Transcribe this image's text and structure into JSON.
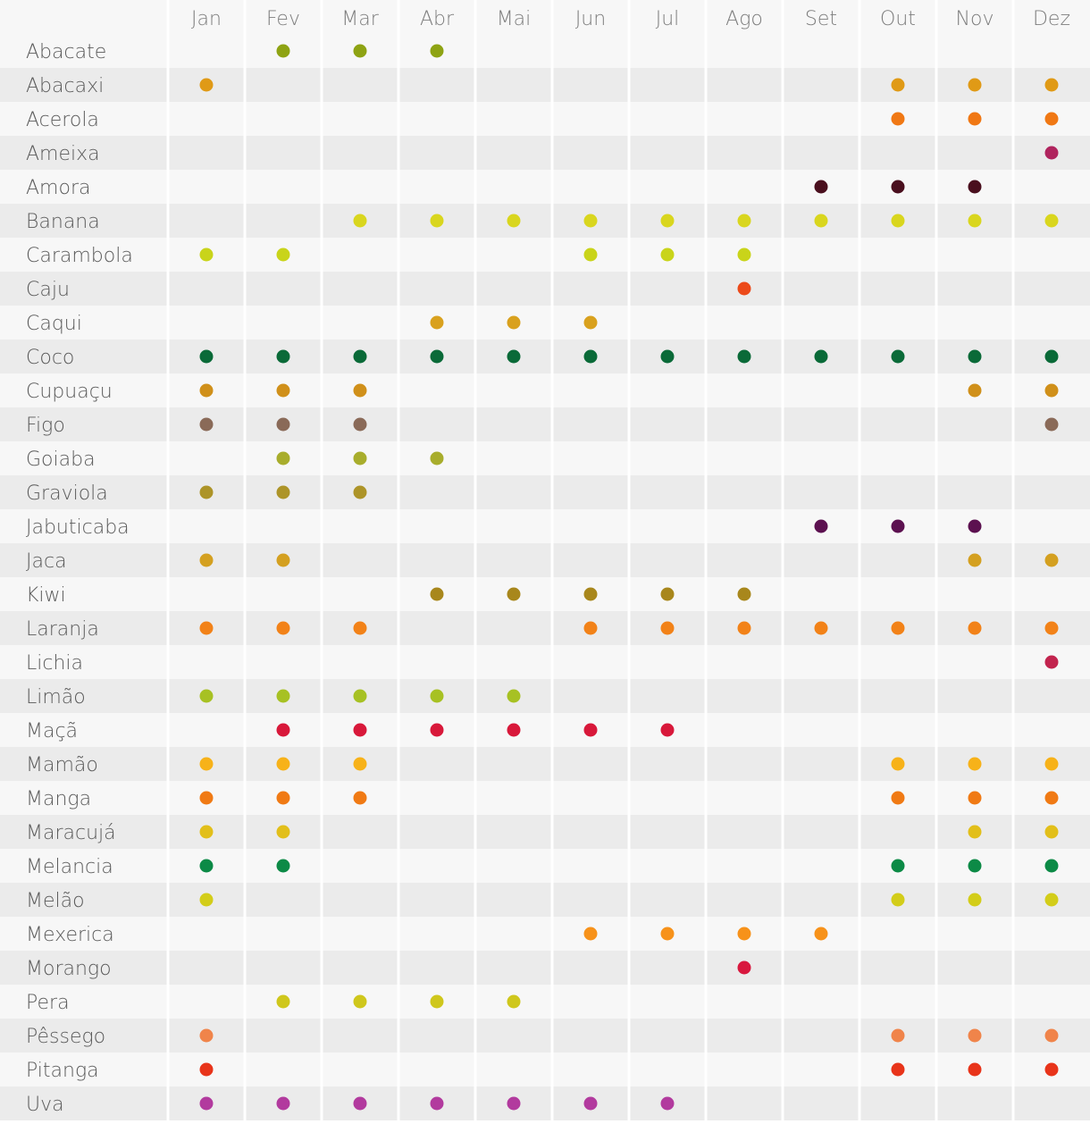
{
  "chart_data": {
    "type": "table",
    "title": "",
    "months": [
      "Jan",
      "Fev",
      "Mar",
      "Abr",
      "Mai",
      "Jun",
      "Jul",
      "Ago",
      "Set",
      "Out",
      "Nov",
      "Dez"
    ],
    "fruits": [
      {
        "name": "Abacate",
        "color": "#8ea313",
        "months": [
          2,
          3,
          4
        ]
      },
      {
        "name": "Abacaxi",
        "color": "#e09a16",
        "months": [
          1,
          10,
          11,
          12
        ]
      },
      {
        "name": "Acerola",
        "color": "#f07814",
        "months": [
          10,
          11,
          12
        ]
      },
      {
        "name": "Ameixa",
        "color": "#b0245e",
        "months": [
          12
        ]
      },
      {
        "name": "Amora",
        "color": "#4a0f1e",
        "months": [
          9,
          10,
          11
        ]
      },
      {
        "name": "Banana",
        "color": "#d9d61e",
        "months": [
          3,
          4,
          5,
          6,
          7,
          8,
          9,
          10,
          11,
          12
        ]
      },
      {
        "name": "Carambola",
        "color": "#c9d41a",
        "months": [
          1,
          2,
          6,
          7,
          8
        ]
      },
      {
        "name": "Caju",
        "color": "#ec4a1a",
        "months": [
          8
        ]
      },
      {
        "name": "Caqui",
        "color": "#d9a11e",
        "months": [
          4,
          5,
          6
        ]
      },
      {
        "name": "Coco",
        "color": "#0a6a38",
        "months": [
          1,
          2,
          3,
          4,
          5,
          6,
          7,
          8,
          9,
          10,
          11,
          12
        ]
      },
      {
        "name": "Cupuaçu",
        "color": "#d0901a",
        "months": [
          1,
          2,
          3,
          11,
          12
        ]
      },
      {
        "name": "Figo",
        "color": "#8a6a58",
        "months": [
          1,
          2,
          3,
          12
        ]
      },
      {
        "name": "Goiaba",
        "color": "#a8ad2c",
        "months": [
          2,
          3,
          4
        ]
      },
      {
        "name": "Graviola",
        "color": "#ad9428",
        "months": [
          1,
          2,
          3
        ]
      },
      {
        "name": "Jabuticaba",
        "color": "#5c1150",
        "months": [
          9,
          10,
          11
        ]
      },
      {
        "name": "Jaca",
        "color": "#d4a020",
        "months": [
          1,
          2,
          11,
          12
        ]
      },
      {
        "name": "Kiwi",
        "color": "#a8871c",
        "months": [
          4,
          5,
          6,
          7,
          8
        ]
      },
      {
        "name": "Laranja",
        "color": "#f28218",
        "months": [
          1,
          2,
          3,
          6,
          7,
          8,
          9,
          10,
          11,
          12
        ]
      },
      {
        "name": "Lichia",
        "color": "#c2244e",
        "months": [
          12
        ]
      },
      {
        "name": "Limão",
        "color": "#a7c123",
        "months": [
          1,
          2,
          3,
          4,
          5
        ]
      },
      {
        "name": "Maçã",
        "color": "#d8183a",
        "months": [
          2,
          3,
          4,
          5,
          6,
          7
        ]
      },
      {
        "name": "Mamão",
        "color": "#f7b219",
        "months": [
          1,
          2,
          3,
          10,
          11,
          12
        ]
      },
      {
        "name": "Manga",
        "color": "#f07a14",
        "months": [
          1,
          2,
          3,
          10,
          11,
          12
        ]
      },
      {
        "name": "Maracujá",
        "color": "#e2bf1a",
        "months": [
          1,
          2,
          11,
          12
        ]
      },
      {
        "name": "Melancia",
        "color": "#0c8a46",
        "months": [
          1,
          2,
          10,
          11,
          12
        ]
      },
      {
        "name": "Melão",
        "color": "#d3cd19",
        "months": [
          1,
          10,
          11,
          12
        ]
      },
      {
        "name": "Mexerica",
        "color": "#f7921a",
        "months": [
          6,
          7,
          8,
          9
        ]
      },
      {
        "name": "Morango",
        "color": "#d8183e",
        "months": [
          8
        ]
      },
      {
        "name": "Pera",
        "color": "#cfc71c",
        "months": [
          2,
          3,
          4,
          5
        ]
      },
      {
        "name": "Pêssego",
        "color": "#f0844a",
        "months": [
          1,
          10,
          11,
          12
        ]
      },
      {
        "name": "Pitanga",
        "color": "#e8341a",
        "months": [
          1,
          10,
          11,
          12
        ]
      },
      {
        "name": "Uva",
        "color": "#b23a9e",
        "months": [
          1,
          2,
          3,
          4,
          5,
          6,
          7
        ]
      }
    ]
  }
}
